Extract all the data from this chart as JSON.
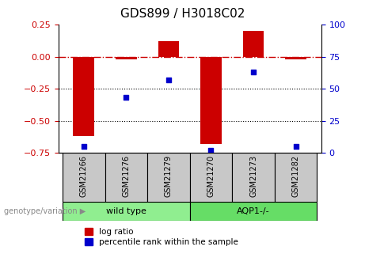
{
  "title": "GDS899 / H3018C02",
  "categories": [
    "GSM21266",
    "GSM21276",
    "GSM21279",
    "GSM21270",
    "GSM21273",
    "GSM21282"
  ],
  "log_ratio": [
    -0.62,
    -0.02,
    0.12,
    -0.68,
    0.2,
    -0.02
  ],
  "percentile_rank": [
    5,
    43,
    57,
    2,
    63,
    5
  ],
  "bar_color": "#CC0000",
  "dot_color": "#0000CC",
  "left_ylim": [
    -0.75,
    0.25
  ],
  "right_ylim": [
    0,
    100
  ],
  "left_yticks": [
    -0.75,
    -0.5,
    -0.25,
    0,
    0.25
  ],
  "right_yticks": [
    0,
    25,
    50,
    75,
    100
  ],
  "dotted_lines": [
    -0.25,
    -0.5
  ],
  "tick_label_color_left": "#CC0000",
  "tick_label_color_right": "#0000CC",
  "legend_items": [
    "log ratio",
    "percentile rank within the sample"
  ],
  "bar_width": 0.5,
  "wt_color": "#90EE90",
  "aqp_color": "#66DD66",
  "gray_color": "#C8C8C8",
  "group_text_color": "#888888",
  "wt_label": "wild type",
  "aqp_label": "AQP1-/-",
  "geno_label": "genotype/variation"
}
